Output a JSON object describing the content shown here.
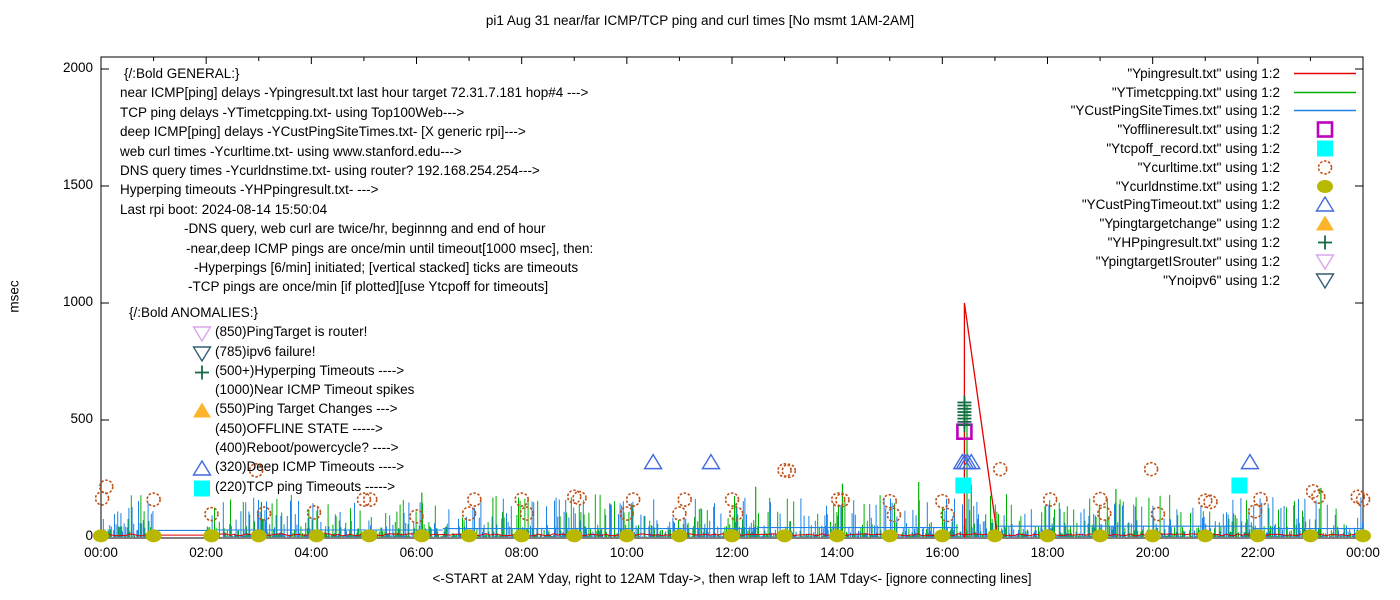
{
  "title": "pi1 Aug 31  near/far ICMP/TCP ping and curl times [No msmt 1AM-2AM]",
  "ylabel": "msec",
  "x_axis_caption": "<-START at 2AM Yday, right to 12AM Tday->, then wrap left to 1AM Tday<- [ignore connecting lines]",
  "axes": {
    "x_tick_labels": [
      "00:00",
      "02:00",
      "04:00",
      "06:00",
      "08:00",
      "10:00",
      "12:00",
      "14:00",
      "16:00",
      "18:00",
      "20:00",
      "22:00",
      "00:00"
    ],
    "y_tick_labels": [
      "0",
      "500",
      "1000",
      "1500",
      "2000"
    ]
  },
  "general_block": [
    {
      "text": "{/:Bold GENERAL:}",
      "indent": 4
    },
    {
      "text": "near ICMP[ping] delays -Ypingresult.txt last hour target 72.31.7.181 hop#4 --->",
      "indent": 0
    },
    {
      "text": "TCP ping delays -YTimetcpping.txt- using Top100Web--->",
      "indent": 0
    },
    {
      "text": "deep ICMP[ping] delays -YCustPingSiteTimes.txt- [X generic rpi]--->",
      "indent": 0
    },
    {
      "text": "web curl times -Ycurltime.txt- using www.stanford.edu--->",
      "indent": 0
    },
    {
      "text": "DNS query times -Ycurldnstime.txt- using router? 192.168.254.254--->",
      "indent": 0
    },
    {
      "text": "Hyperping timeouts -YHPpingresult.txt- --->",
      "indent": 0
    },
    {
      "text": "Last rpi boot: 2024-08-14 15:50:04",
      "indent": 0
    },
    {
      "text": "-DNS query, web curl are twice/hr, beginnng and end of hour",
      "indent": 64
    },
    {
      "text": "-near,deep ICMP pings are once/min until timeout[1000 msec], then:",
      "indent": 66
    },
    {
      "text": "-Hyperpings [6/min] initiated; [vertical stacked] ticks are timeouts",
      "indent": 74
    },
    {
      "text": "-TCP pings are once/min [if plotted][use Ytcpoff for timeouts]",
      "indent": 68
    }
  ],
  "anomalies_block": [
    {
      "marker": null,
      "color": null,
      "text": "{/:Bold ANOMALIES:}",
      "indent": 0
    },
    {
      "marker": "open-triangle-down",
      "color": "#d9a6ec",
      "text": "(850)PingTarget is router!",
      "indent": 86
    },
    {
      "marker": "open-triangle-down",
      "color": "#335e73",
      "text": "(785)ipv6 failure!",
      "indent": 86
    },
    {
      "marker": "plus",
      "color": "#156b45",
      "text": "(500+)Hyperping Timeouts ---->",
      "indent": 86
    },
    {
      "marker": null,
      "color": null,
      "text": "(1000)Near ICMP Timeout spikes",
      "indent": 86
    },
    {
      "marker": "filled-triangle-up",
      "color": "#fdb32a",
      "text": "(550)Ping Target Changes --->",
      "indent": 86
    },
    {
      "marker": null,
      "color": null,
      "text": "(450)OFFLINE STATE ----->",
      "indent": 86
    },
    {
      "marker": null,
      "color": null,
      "text": "(400)Reboot/powercycle? ---->",
      "indent": 86
    },
    {
      "marker": "open-triangle-up",
      "color": "#4169e1",
      "text": "(320)Deep ICMP Timeouts ---->",
      "indent": 86
    },
    {
      "marker": "filled-square",
      "color": "#00ffff",
      "text": "(220)TCP ping Timeouts ----->",
      "indent": 86
    }
  ],
  "chart_data": {
    "type": "line",
    "title": "pi1 Aug 31  near/far ICMP/TCP ping and curl times [No msmt 1AM-2AM]",
    "xlabel": "<-START at 2AM Yday, right to 12AM Tday->, then wrap left to 1AM Tday<- [ignore connecting lines]",
    "ylabel": "msec",
    "xlim_hours": [
      0,
      24
    ],
    "ylim": [
      0,
      2000
    ],
    "y_ticks": [
      0,
      500,
      1000,
      1500,
      2000
    ],
    "x_ticks_hours": [
      0,
      2,
      4,
      6,
      8,
      10,
      12,
      14,
      16,
      18,
      20,
      22,
      24
    ],
    "grid": false,
    "legend_position": "top-right",
    "no_measurement_gap_hours": [
      1,
      2
    ],
    "background_noise": {
      "description": "dense per-minute impulses 0-170 msec for TCP ping (green) and deep ICMP (blue); near ICMP (red) flat 5-15 msec; flat connecting lines across the 1AM-2AM no-measurement gap",
      "green_max_msec": 185,
      "blue_max_msec": 170,
      "red_baseline_msec": [
        5,
        14
      ],
      "blue_level_segments": [
        [
          2.2,
          6.5,
          30
        ],
        [
          6.5,
          12.5,
          36
        ],
        [
          12.5,
          16.3,
          40
        ],
        [
          17.0,
          21.9,
          46
        ],
        [
          21.9,
          24,
          36
        ]
      ],
      "green_extra_spikes": [
        [
          3.05,
          150
        ],
        [
          6.1,
          190
        ],
        [
          12.45,
          215
        ],
        [
          14.1,
          228
        ],
        [
          15.55,
          235
        ],
        [
          16.47,
          560
        ],
        [
          16.55,
          225
        ],
        [
          19.3,
          205
        ],
        [
          23.2,
          210
        ]
      ],
      "gap_levels_msec": {
        "blue": 28,
        "red": 8
      }
    },
    "red_anomaly_spike": {
      "rise_hour": 16.42,
      "peak_msec": 1000,
      "fall_to_zero_hour": 17.05
    },
    "series": [
      {
        "file": "Ypingresult.txt",
        "label": "\"Ypingresult.txt\" using 1:2",
        "style": "line",
        "color": "#e60000",
        "role": "near ICMP ping"
      },
      {
        "file": "YTimetcpping.txt",
        "label": "\"YTimetcpping.txt\" using 1:2",
        "style": "line",
        "color": "#00b000",
        "role": "TCP ping"
      },
      {
        "file": "YCustPingSiteTimes.txt",
        "label": "\"YCustPingSiteTimes.txt\" using 1:2",
        "style": "line",
        "color": "#1e82e6",
        "role": "deep ICMP ping"
      },
      {
        "file": "Yofflineresult.txt",
        "label": "\"Yofflineresult.txt\" using 1:2",
        "style": "open-square",
        "color": "#bf00bf",
        "points": [
          [
            16.42,
            450
          ]
        ]
      },
      {
        "file": "Ytcpoff_record.txt",
        "label": "\"Ytcpoff_record.txt\" using 1:2",
        "style": "filled-square",
        "color": "#00ffff",
        "points": [
          [
            16.4,
            220
          ],
          [
            21.65,
            220
          ]
        ]
      },
      {
        "file": "Ycurltime.txt",
        "label": "\"Ycurltime.txt\" using 1:2",
        "style": "open-circle",
        "color": "#c05018",
        "points": [
          [
            0.02,
            165
          ],
          [
            0.1,
            215
          ],
          [
            1.0,
            160
          ],
          [
            2.1,
            98
          ],
          [
            2.95,
            285
          ],
          [
            3.1,
            100
          ],
          [
            4.05,
            105
          ],
          [
            5.0,
            160
          ],
          [
            5.12,
            160
          ],
          [
            6.0,
            88
          ],
          [
            7.0,
            100
          ],
          [
            7.1,
            160
          ],
          [
            8.0,
            160
          ],
          [
            8.1,
            100
          ],
          [
            9.0,
            172
          ],
          [
            9.1,
            166
          ],
          [
            10.0,
            100
          ],
          [
            10.12,
            160
          ],
          [
            11.0,
            100
          ],
          [
            11.1,
            160
          ],
          [
            12.0,
            160
          ],
          [
            12.08,
            100
          ],
          [
            13.0,
            285
          ],
          [
            13.08,
            283
          ],
          [
            14.02,
            160
          ],
          [
            14.1,
            158
          ],
          [
            15.0,
            153
          ],
          [
            15.08,
            94
          ],
          [
            16.0,
            153
          ],
          [
            16.1,
            94
          ],
          [
            17.1,
            290
          ],
          [
            18.05,
            160
          ],
          [
            19.0,
            162
          ],
          [
            19.08,
            100
          ],
          [
            19.97,
            290
          ],
          [
            20.1,
            98
          ],
          [
            21.0,
            155
          ],
          [
            21.1,
            150
          ],
          [
            21.95,
            110
          ],
          [
            22.05,
            162
          ],
          [
            23.05,
            195
          ],
          [
            23.15,
            172
          ],
          [
            23.9,
            172
          ],
          [
            24.0,
            160
          ]
        ]
      },
      {
        "file": "Ycurldnstime.txt",
        "label": "\"Ycurldnstime.txt\" using 1:2",
        "style": "filled-circle",
        "color": "#b8b800",
        "points": [
          [
            0,
            5
          ],
          [
            1,
            5
          ],
          [
            2.1,
            5
          ],
          [
            3,
            5
          ],
          [
            4.1,
            5
          ],
          [
            5.1,
            5
          ],
          [
            6.1,
            5
          ],
          [
            7,
            5
          ],
          [
            8,
            5
          ],
          [
            9,
            5
          ],
          [
            10,
            5
          ],
          [
            11,
            5
          ],
          [
            12,
            5
          ],
          [
            13,
            5
          ],
          [
            14,
            5
          ],
          [
            15,
            5
          ],
          [
            16,
            5
          ],
          [
            17,
            5
          ],
          [
            18,
            5
          ],
          [
            19,
            5
          ],
          [
            20,
            5
          ],
          [
            21,
            5
          ],
          [
            22,
            5
          ],
          [
            23,
            5
          ],
          [
            24,
            5
          ]
        ]
      },
      {
        "file": "YCustPingTimeout.txt",
        "label": "\"YCustPingTimeout.txt\" using 1:2",
        "style": "open-triangle-up",
        "color": "#4169e1",
        "points": [
          [
            10.5,
            320
          ],
          [
            11.6,
            320
          ],
          [
            16.38,
            320
          ],
          [
            16.43,
            320
          ],
          [
            16.48,
            320
          ],
          [
            16.55,
            320
          ],
          [
            21.85,
            320
          ]
        ]
      },
      {
        "file": "Ypingtargetchange",
        "label": "\"Ypingtargetchange\" using 1:2",
        "style": "filled-triangle-up",
        "color": "#fdb32a",
        "points": []
      },
      {
        "file": "YHPpingresult.txt",
        "label": "\"YHPpingresult.txt\" using 1:2",
        "style": "plus",
        "color": "#156b45",
        "points": [
          [
            16.42,
            478
          ],
          [
            16.42,
            492
          ],
          [
            16.42,
            506
          ],
          [
            16.42,
            520
          ],
          [
            16.42,
            534
          ],
          [
            16.42,
            548
          ],
          [
            16.42,
            562
          ],
          [
            16.42,
            575
          ]
        ]
      },
      {
        "file": "YpingtargetISrouter",
        "label": "\"YpingtargetISrouter\" using 1:2",
        "style": "open-triangle-down",
        "color": "#d9a6ec",
        "points": []
      },
      {
        "file": "Ynoipv6",
        "label": "\"Ynoipv6\" using 1:2",
        "style": "open-triangle-down",
        "color": "#335e73",
        "points": []
      }
    ]
  }
}
